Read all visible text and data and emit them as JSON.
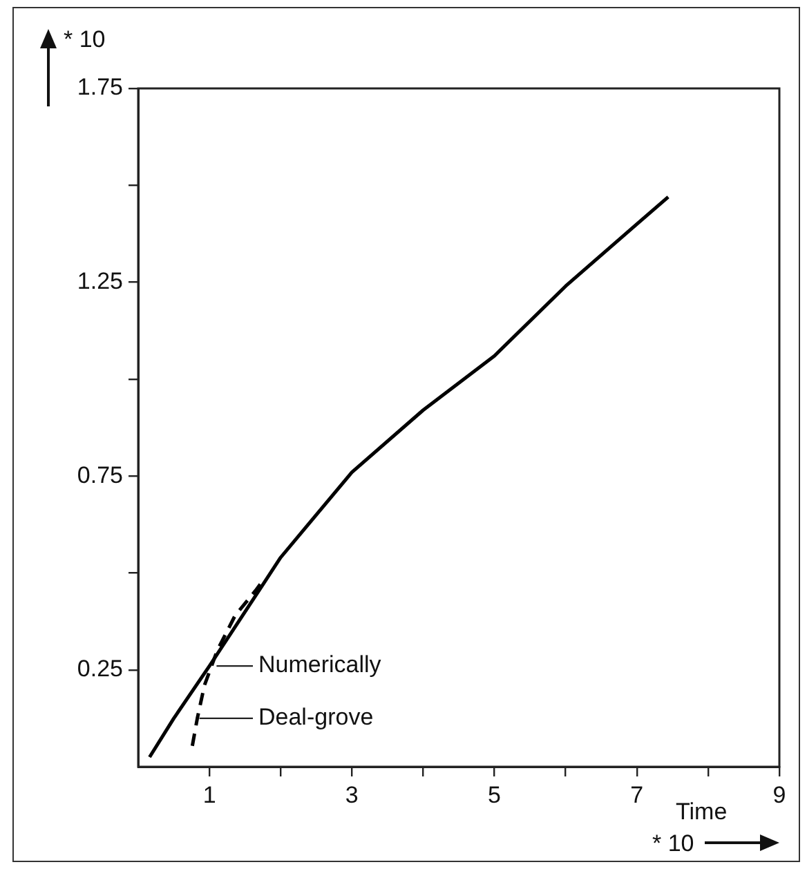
{
  "chart_data": {
    "type": "line",
    "xlabel": "Time",
    "ylabel": "* 10",
    "xlim": [
      0,
      9
    ],
    "xticks": [
      1,
      {
        "value": 2,
        "label": null
      },
      3,
      {
        "value": 4,
        "label": null
      },
      5,
      {
        "value": 6,
        "label": null
      },
      7,
      {
        "value": 8,
        "label": null
      },
      9
    ],
    "ylim": [
      0,
      1.75
    ],
    "yticks": [
      0.25,
      {
        "value": 0.5,
        "label": null
      },
      0.75,
      {
        "value": 1,
        "label": null
      },
      1.25,
      {
        "value": 1.5,
        "label": null
      },
      1.75
    ],
    "grid": false,
    "legend": false,
    "marker": "none",
    "series": [
      {
        "color": "#000000",
        "line_style": "solid",
        "x": [
          0.16,
          0.5,
          1.0,
          1.75,
          2,
          3,
          4,
          5,
          6,
          7,
          7.44
        ],
        "values": [
          0.025,
          0.125,
          0.26,
          0.47,
          0.54,
          0.76,
          0.92,
          1.06,
          1.24,
          1.4,
          1.47
        ]
      },
      {
        "color": "#000000",
        "line_style": "dashed",
        "x": [
          0.76,
          0.83,
          0.93,
          1.11,
          1.36,
          1.65,
          1.75
        ],
        "values": [
          0.054,
          0.125,
          0.21,
          0.3,
          0.39,
          0.455,
          0.48
        ]
      }
    ],
    "annotations": [
      {
        "text": "Numerically",
        "x": 1.1,
        "y": 0.26
      },
      {
        "text": "Deal-grove",
        "x": 0.86,
        "y": 0.125
      },
      "* 10"
    ]
  }
}
